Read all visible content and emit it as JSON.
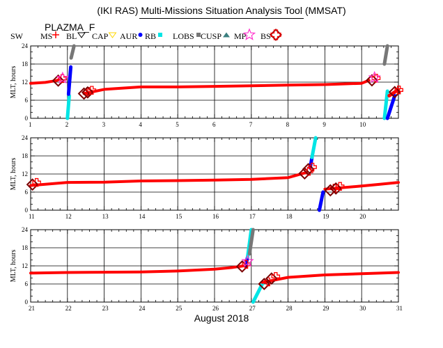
{
  "title": "(IKI RAS) Multi-Missions Situation Analysis Tool (MMSAT)",
  "instrument_label": "PLAZMA_F",
  "legend": [
    {
      "label": "SW",
      "icon": "none"
    },
    {
      "label": "MS",
      "icon": "cross-icon",
      "color": "#ff0000"
    },
    {
      "label": "BL",
      "icon": "triangle-down-icon",
      "color": "#000000"
    },
    {
      "label": "CAP",
      "icon": "triangle-down-icon",
      "color": "#ffd700"
    },
    {
      "label": "AUR",
      "icon": "dot-icon",
      "color": "#0000ff"
    },
    {
      "label": "RB",
      "icon": "square-icon",
      "color": "#00e5e5"
    },
    {
      "label": "LOBS",
      "icon": "square-icon",
      "color": "#777777"
    },
    {
      "label": "CUSP",
      "icon": "triangle-icon",
      "color": "#3a7f7f"
    },
    {
      "label": "MP",
      "icon": "star-icon",
      "color": "#ff33cc"
    },
    {
      "label": "BS",
      "icon": "diamond-icon",
      "color": "#7a0000"
    },
    {
      "label": "",
      "icon": "open-cross-icon",
      "color": "#ff0000"
    }
  ],
  "colors": {
    "sw": "#ff0000",
    "aur": "#0000ff",
    "rb": "#00e5e5",
    "lobs": "#777777",
    "mp": "#ff33cc",
    "bs": "#7a0000",
    "grid": "#000000"
  },
  "x_axis_label": "August 2018",
  "chart_data": [
    {
      "type": "scatter",
      "ylabel": "MLT, hours",
      "xlim": [
        1,
        11
      ],
      "ylim": [
        0,
        24
      ],
      "x_ticks": [
        1,
        2,
        3,
        4,
        5,
        6,
        7,
        8,
        9,
        10
      ],
      "y_ticks": [
        0,
        6,
        12,
        18,
        24
      ],
      "grid": true,
      "series": [
        {
          "region": "SW",
          "x": [
            1.0,
            1.4,
            1.7,
            1.8
          ],
          "y": [
            11.6,
            11.9,
            12.5,
            13.0
          ]
        },
        {
          "region": "LOBS",
          "x": [
            2.1,
            2.18
          ],
          "y": [
            20.0,
            24.0
          ]
        },
        {
          "region": "RB",
          "x": [
            2.0,
            2.05
          ],
          "y": [
            0.0,
            7.5
          ]
        },
        {
          "region": "AUR",
          "x": [
            2.03,
            2.09
          ],
          "y": [
            8.0,
            17.0
          ]
        },
        {
          "region": "SW",
          "x": [
            2.45,
            3.0,
            4.0,
            5.0,
            6.0,
            7.0,
            8.0,
            9.0,
            10.0,
            10.2
          ],
          "y": [
            8.2,
            9.6,
            10.4,
            10.4,
            10.6,
            10.8,
            11.0,
            11.2,
            11.6,
            12.6
          ]
        },
        {
          "region": "RB",
          "x": [
            10.62,
            10.7
          ],
          "y": [
            0.0,
            9.0
          ]
        },
        {
          "region": "AUR",
          "x": [
            10.7,
            10.9
          ],
          "y": [
            0.0,
            7.5
          ]
        },
        {
          "region": "LOBS",
          "x": [
            10.62,
            10.7
          ],
          "y": [
            18.0,
            24.0
          ]
        },
        {
          "region": "MS",
          "x": [
            10.75,
            11.0
          ],
          "y": [
            7.5,
            9.5
          ]
        }
      ],
      "events": [
        {
          "type": "BS",
          "x": 1.75,
          "y": 12.5
        },
        {
          "type": "MP",
          "x": 1.87,
          "y": 13.3
        },
        {
          "type": "BS",
          "x": 2.45,
          "y": 8.2
        },
        {
          "type": "BS",
          "x": 2.55,
          "y": 8.6
        },
        {
          "type": "BS",
          "x": 10.28,
          "y": 12.6
        },
        {
          "type": "MP",
          "x": 10.35,
          "y": 13.5
        },
        {
          "type": "BS",
          "x": 10.9,
          "y": 8.7
        }
      ]
    },
    {
      "type": "scatter",
      "ylabel": "MLT, hours",
      "xlim": [
        11,
        21
      ],
      "ylim": [
        0,
        24
      ],
      "x_ticks": [
        11,
        12,
        13,
        14,
        15,
        16,
        17,
        18,
        19,
        20
      ],
      "y_ticks": [
        0,
        6,
        12,
        18,
        24
      ],
      "grid": true,
      "series": [
        {
          "region": "SW",
          "x": [
            11.0,
            12.0,
            13.0,
            14.0,
            15.0,
            16.0,
            17.0,
            18.0,
            18.5
          ],
          "y": [
            8.2,
            9.2,
            9.3,
            9.7,
            9.8,
            10.0,
            10.2,
            10.8,
            12.5
          ]
        },
        {
          "region": "AUR",
          "x": [
            18.6,
            18.65
          ],
          "y": [
            14.0,
            17.5
          ]
        },
        {
          "region": "RB",
          "x": [
            18.65,
            18.75
          ],
          "y": [
            17.5,
            24.0
          ]
        },
        {
          "region": "AUR",
          "x": [
            18.85,
            18.95
          ],
          "y": [
            0.0,
            6.0
          ]
        },
        {
          "region": "SW",
          "x": [
            19.0,
            20.0,
            20.5,
            21.0
          ],
          "y": [
            7.0,
            8.0,
            8.6,
            9.2
          ]
        }
      ],
      "events": [
        {
          "type": "BS",
          "x": 11.05,
          "y": 8.5
        },
        {
          "type": "BS",
          "x": 18.45,
          "y": 12.2
        },
        {
          "type": "BS",
          "x": 18.55,
          "y": 13.6
        },
        {
          "type": "BS",
          "x": 19.15,
          "y": 6.6
        },
        {
          "type": "BS",
          "x": 19.3,
          "y": 7.2
        }
      ]
    },
    {
      "type": "scatter",
      "ylabel": "MLT, hours",
      "xlim": [
        21,
        31
      ],
      "ylim": [
        0,
        24
      ],
      "x_ticks": [
        21,
        22,
        23,
        24,
        25,
        26,
        27,
        28,
        29,
        30,
        31
      ],
      "y_ticks": [
        0,
        6,
        12,
        18,
        24
      ],
      "grid": true,
      "series": [
        {
          "region": "SW",
          "x": [
            21.0,
            22.0,
            23.0,
            24.0,
            25.0,
            26.0,
            26.5,
            26.85
          ],
          "y": [
            9.6,
            9.8,
            9.9,
            10.0,
            10.3,
            10.9,
            11.5,
            12.1
          ]
        },
        {
          "region": "AUR",
          "x": [
            26.85,
            26.9
          ],
          "y": [
            12.0,
            15.0
          ]
        },
        {
          "region": "RB",
          "x": [
            26.9,
            27.0
          ],
          "y": [
            15.0,
            24.0
          ]
        },
        {
          "region": "LOBS",
          "x": [
            26.95,
            27.05
          ],
          "y": [
            16.0,
            24.0
          ]
        },
        {
          "region": "RB",
          "x": [
            27.05,
            27.3
          ],
          "y": [
            0.0,
            6.0
          ]
        },
        {
          "region": "SW",
          "x": [
            27.3,
            28.0,
            29.0,
            30.0,
            31.0
          ],
          "y": [
            6.5,
            8.2,
            9.0,
            9.4,
            9.8
          ]
        }
      ],
      "events": [
        {
          "type": "BS",
          "x": 26.75,
          "y": 11.8
        },
        {
          "type": "MP",
          "x": 26.9,
          "y": 13.5
        },
        {
          "type": "BS",
          "x": 27.35,
          "y": 6.0
        },
        {
          "type": "BS",
          "x": 27.55,
          "y": 7.8
        }
      ]
    }
  ]
}
